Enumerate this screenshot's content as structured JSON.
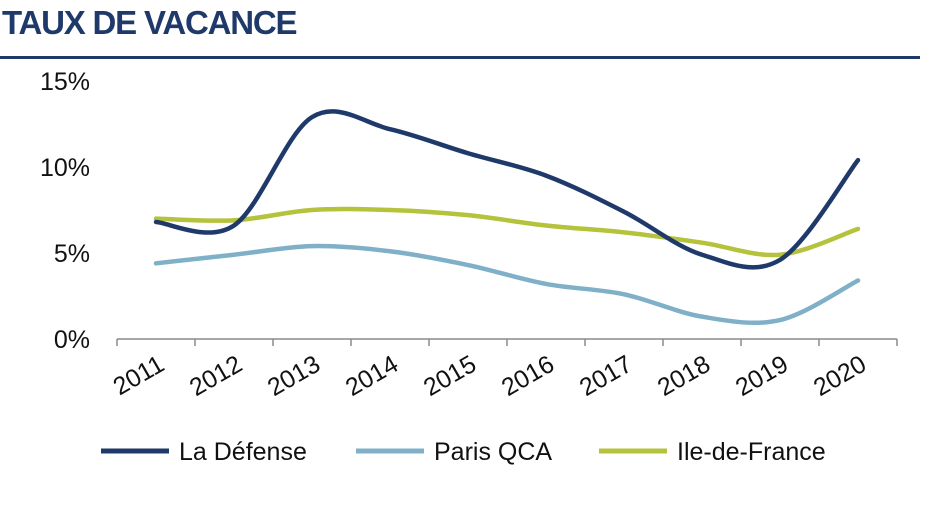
{
  "header": {
    "title": "TAUX DE VACANCE"
  },
  "chart_data": {
    "type": "line",
    "categories": [
      "2011",
      "2012",
      "2013",
      "2014",
      "2015",
      "2016",
      "2017",
      "2018",
      "2019",
      "2020"
    ],
    "y_ticks": [
      "0%",
      "5%",
      "10%",
      "15%"
    ],
    "ylim": [
      0,
      15
    ],
    "y_unit": "%",
    "grid": false,
    "legend_position": "bottom",
    "title": "",
    "xlabel": "",
    "ylabel": "",
    "series": [
      {
        "name": "La Défense",
        "color": "#1f3a6a",
        "values": [
          6.8,
          6.6,
          12.9,
          12.2,
          10.8,
          9.5,
          7.4,
          4.9,
          4.6,
          10.4
        ]
      },
      {
        "name": "Paris QCA",
        "color": "#7fb0c8",
        "values": [
          4.4,
          4.9,
          5.4,
          5.1,
          4.3,
          3.2,
          2.6,
          1.3,
          1.1,
          3.4
        ]
      },
      {
        "name": "Ile-de-France",
        "color": "#b4c23c",
        "values": [
          7.0,
          6.9,
          7.5,
          7.5,
          7.2,
          6.6,
          6.2,
          5.6,
          4.9,
          6.4
        ]
      }
    ]
  }
}
